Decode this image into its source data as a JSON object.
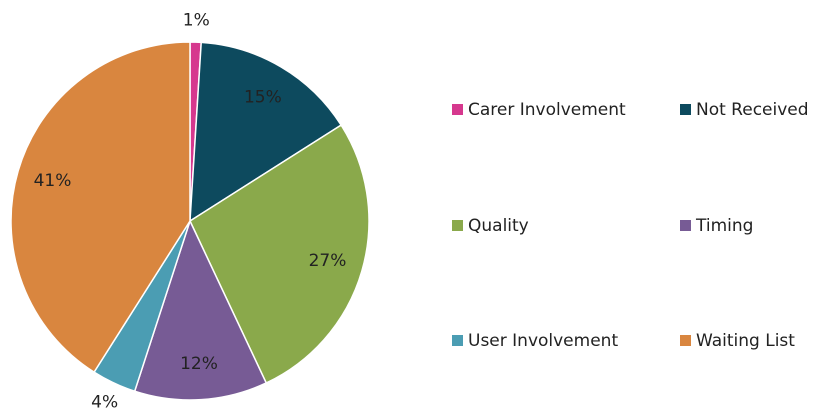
{
  "chart_data": {
    "type": "pie",
    "categories": [
      "Carer Involvement",
      "Not Received",
      "Quality",
      "Timing",
      "User Involvement",
      "Waiting List"
    ],
    "values": [
      1,
      15,
      27,
      12,
      4,
      41
    ],
    "value_labels": [
      "1%",
      "15%",
      "27%",
      "12%",
      "4%",
      "41%"
    ],
    "colors": [
      "#d6388e",
      "#0d4a5e",
      "#8aa94b",
      "#775b95",
      "#4b9db3",
      "#d9863f"
    ],
    "legend": "right"
  }
}
